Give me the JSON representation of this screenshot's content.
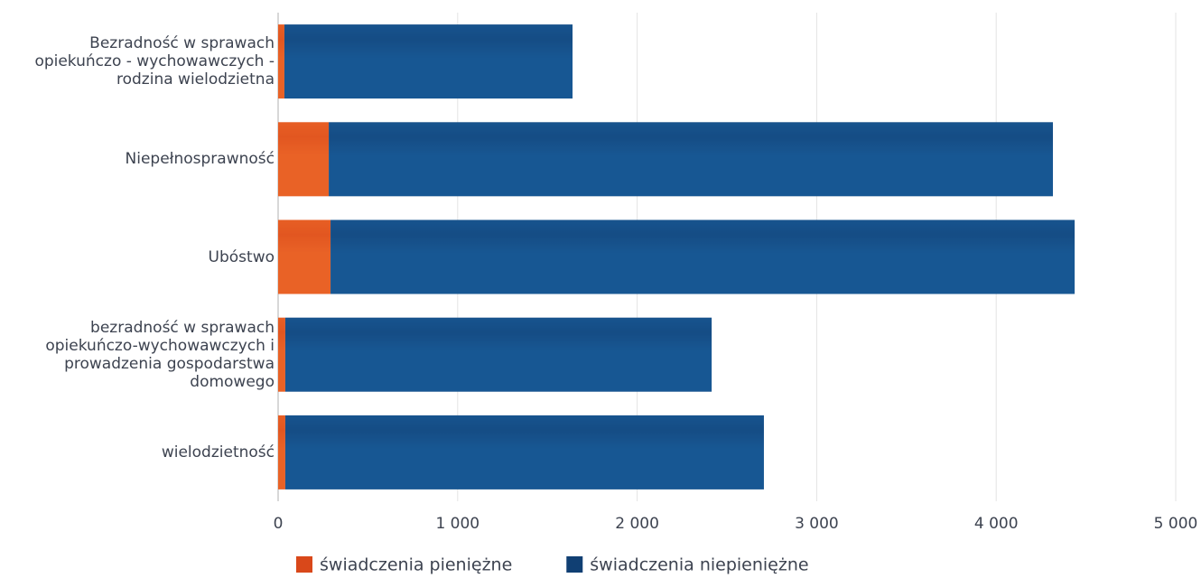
{
  "chart_data": {
    "type": "bar",
    "orientation": "horizontal",
    "stacked": true,
    "categories": [
      "Bezradność w sprawach opiekuńczo - wychowawczych - rodzina wielodzietna",
      "Niepełnosprawność",
      "Ubóstwo",
      "bezradność w sprawach opiekuńczo-wychowawczych i prowadzenia gospodarstwa domowego",
      "wielodzietność"
    ],
    "series": [
      {
        "name": "świadczenia pieniężne",
        "color": "#d9481a",
        "values": [
          35,
          282,
          292,
          40,
          40
        ]
      },
      {
        "name": "świadczenia niepieniężne",
        "color": "#103f73",
        "values": [
          1605,
          4034,
          4145,
          2375,
          2666
        ]
      }
    ],
    "xlim": [
      0,
      5000
    ],
    "xticks": [
      0,
      {
        "value": 1000,
        "label": "1 000"
      },
      {
        "value": 2000,
        "label": "2 000"
      },
      {
        "value": 3000,
        "label": "3 000"
      },
      {
        "value": 4000,
        "label": "4 000"
      },
      {
        "value": 5000,
        "label": "5 000"
      }
    ],
    "grid": true,
    "legend": "bottom"
  }
}
